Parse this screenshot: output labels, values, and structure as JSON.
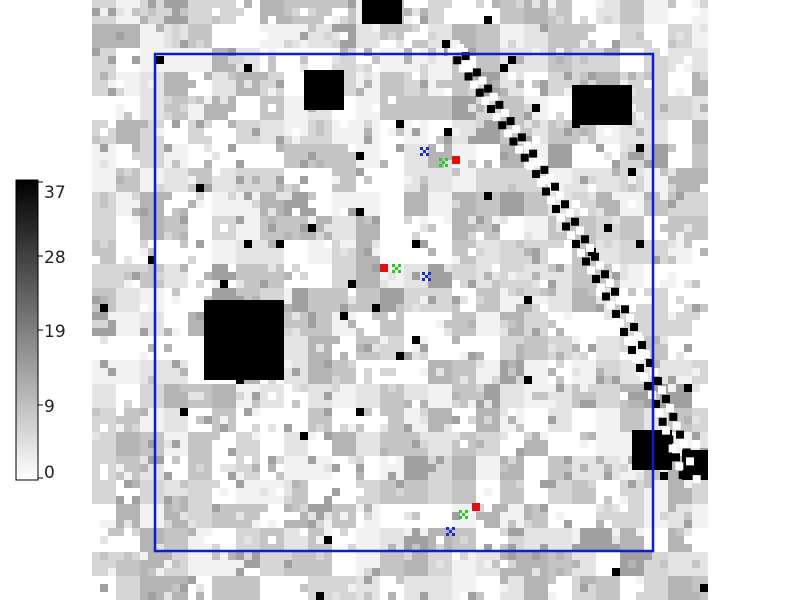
{
  "colorbar": {
    "tick_labels": [
      "37",
      "28",
      "19",
      "9",
      "0"
    ],
    "min": 0,
    "max": 37,
    "scale": "white-to-black"
  },
  "map": {
    "style": "grayscale raster grid",
    "frame_color": "#0a1fd1"
  },
  "marker_colors": {
    "blue": "#1a2bd6",
    "green": "#22cc22",
    "red": "#e01010"
  },
  "marker_groups": [
    {
      "name": "top",
      "colors": [
        "blue",
        "green",
        "red"
      ]
    },
    {
      "name": "middle",
      "colors": [
        "red",
        "green",
        "blue"
      ]
    },
    {
      "name": "bottom",
      "colors": [
        "red",
        "green",
        "blue"
      ]
    }
  ]
}
